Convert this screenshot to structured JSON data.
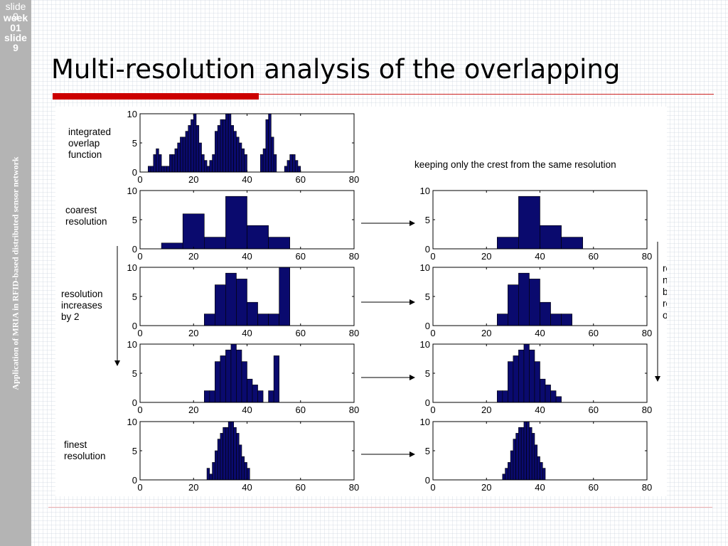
{
  "sidebar": {
    "slide_back": "slide\n9",
    "slide_front": "week\n01\nslide\n9",
    "caption": "Application of MRIA in RFID-based distributed sensor network"
  },
  "title": "Multi-resolution analysis of the overlapping",
  "figure": {
    "right_header": "keeping only the crest from the same resolution",
    "right_annotation": [
      "regions",
      "need to",
      "be",
      "resolved",
      "over"
    ]
  },
  "colors": {
    "bar_fill": "#0a0a6e",
    "accent_red": "#cc0000",
    "sidebar_gray": "#b4b4b4"
  },
  "chart_data": [
    {
      "type": "bar",
      "panel": "left-1",
      "row_label": [
        "integrated",
        "overlap",
        "function"
      ],
      "xlim": [
        0,
        80
      ],
      "ylim": [
        0,
        10
      ],
      "xticks": [
        0,
        20,
        40,
        60,
        80
      ],
      "yticks": [
        0,
        5,
        10
      ],
      "bin_width": 1,
      "x_start": 3,
      "values": [
        1,
        1,
        3,
        4,
        3,
        1,
        1,
        1,
        3,
        3,
        4,
        5,
        6,
        6,
        7,
        8,
        9,
        10,
        8,
        5,
        3,
        2,
        1,
        2,
        3,
        7,
        8,
        9,
        9,
        10,
        10,
        8,
        7,
        6,
        5,
        4,
        3,
        0,
        0,
        0,
        0,
        0,
        3,
        4,
        9,
        10,
        6,
        3,
        0,
        0,
        0,
        1,
        2,
        3,
        3,
        2,
        1,
        0
      ]
    },
    {
      "type": "bar",
      "panel": "left-2",
      "row_label": [
        "coarest",
        "resolution"
      ],
      "xlim": [
        0,
        80
      ],
      "ylim": [
        0,
        10
      ],
      "xticks": [
        0,
        20,
        40,
        60,
        80
      ],
      "yticks": [
        0,
        5,
        10
      ],
      "bins": [
        {
          "x0": 8,
          "x1": 16,
          "y": 1
        },
        {
          "x0": 16,
          "x1": 24,
          "y": 6
        },
        {
          "x0": 24,
          "x1": 32,
          "y": 2
        },
        {
          "x0": 32,
          "x1": 40,
          "y": 9
        },
        {
          "x0": 40,
          "x1": 48,
          "y": 4
        },
        {
          "x0": 48,
          "x1": 56,
          "y": 2
        }
      ]
    },
    {
      "type": "bar",
      "panel": "left-3",
      "row_label": [
        "resolution",
        "increases",
        "by 2"
      ],
      "xlim": [
        0,
        80
      ],
      "ylim": [
        0,
        10
      ],
      "xticks": [
        0,
        20,
        40,
        60,
        80
      ],
      "yticks": [
        0,
        5,
        10
      ],
      "bins": [
        {
          "x0": 24,
          "x1": 28,
          "y": 2
        },
        {
          "x0": 28,
          "x1": 32,
          "y": 7
        },
        {
          "x0": 32,
          "x1": 36,
          "y": 9
        },
        {
          "x0": 36,
          "x1": 40,
          "y": 8
        },
        {
          "x0": 40,
          "x1": 44,
          "y": 4
        },
        {
          "x0": 44,
          "x1": 48,
          "y": 2
        },
        {
          "x0": 48,
          "x1": 52,
          "y": 2
        },
        {
          "x0": 52,
          "x1": 56,
          "y": 10
        }
      ]
    },
    {
      "type": "bar",
      "panel": "left-4",
      "row_label": [],
      "xlim": [
        0,
        80
      ],
      "ylim": [
        0,
        10
      ],
      "xticks": [
        0,
        20,
        40,
        60,
        80
      ],
      "yticks": [
        0,
        5,
        10
      ],
      "bins": [
        {
          "x0": 24,
          "x1": 26,
          "y": 2
        },
        {
          "x0": 26,
          "x1": 28,
          "y": 2
        },
        {
          "x0": 28,
          "x1": 30,
          "y": 7
        },
        {
          "x0": 30,
          "x1": 32,
          "y": 8
        },
        {
          "x0": 32,
          "x1": 34,
          "y": 9
        },
        {
          "x0": 34,
          "x1": 36,
          "y": 10
        },
        {
          "x0": 36,
          "x1": 38,
          "y": 9
        },
        {
          "x0": 38,
          "x1": 40,
          "y": 7
        },
        {
          "x0": 40,
          "x1": 42,
          "y": 4
        },
        {
          "x0": 42,
          "x1": 44,
          "y": 3
        },
        {
          "x0": 44,
          "x1": 46,
          "y": 2
        },
        {
          "x0": 46,
          "x1": 48,
          "y": 0
        },
        {
          "x0": 48,
          "x1": 50,
          "y": 2
        },
        {
          "x0": 50,
          "x1": 52,
          "y": 8
        }
      ]
    },
    {
      "type": "bar",
      "panel": "left-5",
      "row_label": [
        "finest",
        "resolution"
      ],
      "xlim": [
        0,
        80
      ],
      "ylim": [
        0,
        10
      ],
      "xticks": [
        0,
        20,
        40,
        60,
        80
      ],
      "yticks": [
        0,
        5,
        10
      ],
      "bin_width": 1,
      "x_start": 25,
      "values": [
        2,
        1,
        3,
        5,
        7,
        8,
        9,
        9,
        10,
        10,
        9,
        8,
        6,
        4,
        3,
        2
      ]
    },
    {
      "type": "bar",
      "panel": "right-2",
      "xlim": [
        0,
        80
      ],
      "ylim": [
        0,
        10
      ],
      "xticks": [
        0,
        20,
        40,
        60,
        80
      ],
      "yticks": [
        0,
        5,
        10
      ],
      "bins": [
        {
          "x0": 24,
          "x1": 32,
          "y": 2
        },
        {
          "x0": 32,
          "x1": 40,
          "y": 9
        },
        {
          "x0": 40,
          "x1": 48,
          "y": 4
        },
        {
          "x0": 48,
          "x1": 56,
          "y": 2
        }
      ]
    },
    {
      "type": "bar",
      "panel": "right-3",
      "xlim": [
        0,
        80
      ],
      "ylim": [
        0,
        10
      ],
      "xticks": [
        0,
        20,
        40,
        60,
        80
      ],
      "yticks": [
        0,
        5,
        10
      ],
      "bins": [
        {
          "x0": 24,
          "x1": 28,
          "y": 2
        },
        {
          "x0": 28,
          "x1": 32,
          "y": 7
        },
        {
          "x0": 32,
          "x1": 36,
          "y": 9
        },
        {
          "x0": 36,
          "x1": 40,
          "y": 8
        },
        {
          "x0": 40,
          "x1": 44,
          "y": 4
        },
        {
          "x0": 44,
          "x1": 48,
          "y": 2
        },
        {
          "x0": 48,
          "x1": 52,
          "y": 2
        }
      ]
    },
    {
      "type": "bar",
      "panel": "right-4",
      "xlim": [
        0,
        80
      ],
      "ylim": [
        0,
        10
      ],
      "xticks": [
        0,
        20,
        40,
        60,
        80
      ],
      "yticks": [
        0,
        5,
        10
      ],
      "bins": [
        {
          "x0": 24,
          "x1": 26,
          "y": 2
        },
        {
          "x0": 26,
          "x1": 28,
          "y": 2
        },
        {
          "x0": 28,
          "x1": 30,
          "y": 7
        },
        {
          "x0": 30,
          "x1": 32,
          "y": 8
        },
        {
          "x0": 32,
          "x1": 34,
          "y": 9
        },
        {
          "x0": 34,
          "x1": 36,
          "y": 10
        },
        {
          "x0": 36,
          "x1": 38,
          "y": 9
        },
        {
          "x0": 38,
          "x1": 40,
          "y": 7
        },
        {
          "x0": 40,
          "x1": 42,
          "y": 4
        },
        {
          "x0": 42,
          "x1": 44,
          "y": 3
        },
        {
          "x0": 44,
          "x1": 46,
          "y": 2
        },
        {
          "x0": 46,
          "x1": 48,
          "y": 1
        }
      ]
    },
    {
      "type": "bar",
      "panel": "right-5",
      "xlim": [
        0,
        80
      ],
      "ylim": [
        0,
        10
      ],
      "xticks": [
        0,
        20,
        40,
        60,
        80
      ],
      "yticks": [
        0,
        5,
        10
      ],
      "bin_width": 1,
      "x_start": 26,
      "values": [
        1,
        2,
        3,
        5,
        7,
        8,
        9,
        9,
        10,
        10,
        9,
        8,
        6,
        4,
        3,
        2
      ]
    }
  ]
}
